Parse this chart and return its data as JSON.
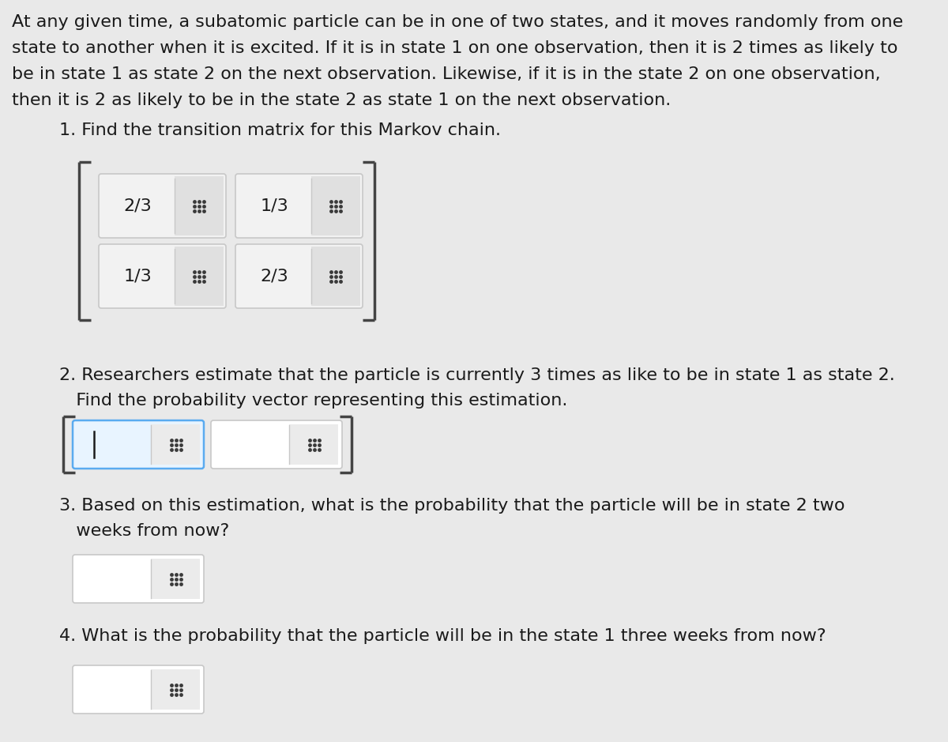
{
  "bg_color": "#e9e9e9",
  "text_color": "#1a1a1a",
  "paragraph_lines": [
    "At any given time, a subatomic particle can be in one of two states, and it moves randomly from one",
    "state to another when it is excited. If it is in state 1 on one observation, then it is 2 times as likely to",
    "be in state 1 as state 2 on the next observation. Likewise, if it is in the state 2 on one observation,",
    "then it is 2 as likely to be in the state 2 as state 1 on the next observation."
  ],
  "q1_text": "1. Find the transition matrix for this Markov chain.",
  "q2_line1": "2. Researchers estimate that the particle is currently 3 times as like to be in state 1 as state 2.",
  "q2_line2": "   Find the probability vector representing this estimation.",
  "q3_line1": "3. Based on this estimation, what is the probability that the particle will be in state 2 two",
  "q3_line2": "   weeks from now?",
  "q4_text": "4. What is the probability that the particle will be in the state 1 three weeks from now?",
  "matrix_values": [
    "2/3",
    "1/3",
    "1/3",
    "2/3"
  ],
  "cell_bg_light": "#f2f2f2",
  "cell_bg_dark": "#e0e0e0",
  "cell_border": "#c8c8c8",
  "bracket_color": "#444444",
  "grid_icon_color": "#3a3a3a",
  "input_box_bg": "#ffffff",
  "input_box_bg2": "#ebebeb",
  "input_box_border": "#c8c8c8",
  "active_box_border": "#5aabf0",
  "active_box_bg": "#e8f4ff",
  "font_size_para": 16,
  "font_size_q": 16,
  "font_size_matrix": 16
}
